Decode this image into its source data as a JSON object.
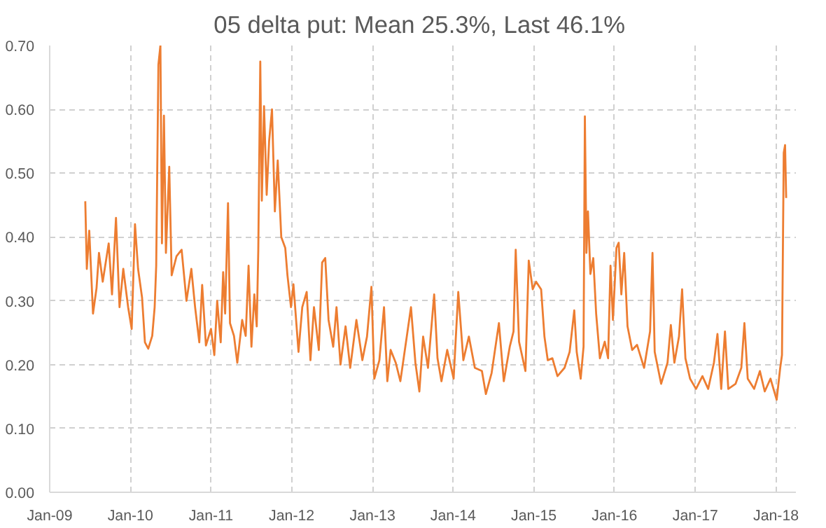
{
  "chart_data": {
    "type": "line",
    "title": "05 delta put:  Mean 25.3%, Last 46.1%",
    "x": [
      "2009-06-11",
      "2009-06-18",
      "2009-06-29",
      "2009-07-16",
      "2009-08-01",
      "2009-08-12",
      "2009-08-29",
      "2009-09-25",
      "2009-10-10",
      "2009-10-28",
      "2009-11-13",
      "2009-11-30",
      "2009-12-22",
      "2010-01-07",
      "2010-01-22",
      "2010-02-05",
      "2010-02-23",
      "2010-03-08",
      "2010-03-23",
      "2010-04-10",
      "2010-04-21",
      "2010-04-28",
      "2010-05-08",
      "2010-05-17",
      "2010-05-24",
      "2010-06-02",
      "2010-06-11",
      "2010-06-26",
      "2010-07-07",
      "2010-07-29",
      "2010-08-21",
      "2010-09-12",
      "2010-10-04",
      "2010-10-21",
      "2010-11-09",
      "2010-11-22",
      "2010-12-09",
      "2011-01-01",
      "2011-01-16",
      "2011-01-29",
      "2011-02-14",
      "2011-02-25",
      "2011-03-06",
      "2011-03-19",
      "2011-03-28",
      "2011-04-15",
      "2011-04-30",
      "2011-05-22",
      "2011-06-07",
      "2011-06-20",
      "2011-07-03",
      "2011-07-16",
      "2011-07-27",
      "2011-08-03",
      "2011-08-12",
      "2011-08-19",
      "2011-08-29",
      "2011-09-10",
      "2011-09-21",
      "2011-10-04",
      "2011-10-17",
      "2011-10-30",
      "2011-11-15",
      "2011-12-03",
      "2011-12-13",
      "2011-12-29",
      "2012-01-09",
      "2012-02-01",
      "2012-02-18",
      "2012-03-09",
      "2012-03-26",
      "2012-04-11",
      "2012-05-03",
      "2012-05-18",
      "2012-06-01",
      "2012-06-16",
      "2012-07-07",
      "2012-07-22",
      "2012-08-09",
      "2012-09-01",
      "2012-09-22",
      "2012-10-20",
      "2012-11-16",
      "2012-12-07",
      "2012-12-27",
      "2013-01-09",
      "2013-02-01",
      "2013-02-22",
      "2013-03-09",
      "2013-03-24",
      "2013-04-16",
      "2013-05-07",
      "2013-06-05",
      "2013-06-24",
      "2013-07-14",
      "2013-08-01",
      "2013-08-18",
      "2013-09-09",
      "2013-10-07",
      "2013-10-22",
      "2013-11-09",
      "2013-12-05",
      "2014-01-03",
      "2014-01-24",
      "2014-02-16",
      "2014-03-13",
      "2014-04-09",
      "2014-05-11",
      "2014-05-29",
      "2014-06-24",
      "2014-07-27",
      "2014-08-18",
      "2014-09-14",
      "2014-10-01",
      "2014-10-11",
      "2014-10-26",
      "2014-11-24",
      "2014-12-09",
      "2014-12-27",
      "2015-01-11",
      "2015-02-03",
      "2015-02-18",
      "2015-03-05",
      "2015-03-26",
      "2015-04-18",
      "2015-05-20",
      "2015-06-12",
      "2015-07-03",
      "2015-07-14",
      "2015-08-01",
      "2015-08-14",
      "2015-08-20",
      "2015-08-27",
      "2015-09-03",
      "2015-09-14",
      "2015-09-27",
      "2015-10-10",
      "2015-10-27",
      "2015-11-18",
      "2015-12-03",
      "2015-12-14",
      "2015-12-25",
      "2016-01-10",
      "2016-01-20",
      "2016-02-01",
      "2016-02-14",
      "2016-02-29",
      "2016-03-21",
      "2016-04-12",
      "2016-05-14",
      "2016-06-10",
      "2016-06-21",
      "2016-07-01",
      "2016-07-30",
      "2016-08-28",
      "2016-09-12",
      "2016-09-28",
      "2016-10-19",
      "2016-11-02",
      "2016-11-17",
      "2016-12-08",
      "2017-01-04",
      "2017-02-02",
      "2017-02-28",
      "2017-03-26",
      "2017-04-11",
      "2017-04-28",
      "2017-05-15",
      "2017-05-30",
      "2017-07-02",
      "2017-07-28",
      "2017-08-11",
      "2017-08-26",
      "2017-09-24",
      "2017-10-20",
      "2017-11-11",
      "2017-12-07",
      "2018-01-04",
      "2018-01-20",
      "2018-01-28",
      "2018-02-05",
      "2018-02-11",
      "2018-02-16"
    ],
    "series": [
      {
        "color": "#ed7d31",
        "values": [
          0.456,
          0.35,
          0.41,
          0.28,
          0.32,
          0.375,
          0.33,
          0.39,
          0.31,
          0.43,
          0.29,
          0.35,
          0.29,
          0.256,
          0.42,
          0.35,
          0.305,
          0.235,
          0.225,
          0.245,
          0.29,
          0.355,
          0.67,
          0.7,
          0.39,
          0.59,
          0.375,
          0.51,
          0.34,
          0.37,
          0.38,
          0.3,
          0.35,
          0.29,
          0.235,
          0.325,
          0.23,
          0.256,
          0.215,
          0.3,
          0.235,
          0.345,
          0.28,
          0.453,
          0.265,
          0.245,
          0.203,
          0.27,
          0.245,
          0.355,
          0.228,
          0.31,
          0.26,
          0.38,
          0.675,
          0.457,
          0.605,
          0.466,
          0.55,
          0.6,
          0.44,
          0.52,
          0.4,
          0.383,
          0.34,
          0.29,
          0.326,
          0.22,
          0.29,
          0.314,
          0.207,
          0.29,
          0.223,
          0.36,
          0.367,
          0.27,
          0.228,
          0.29,
          0.2,
          0.26,
          0.195,
          0.27,
          0.207,
          0.244,
          0.322,
          0.178,
          0.207,
          0.29,
          0.174,
          0.223,
          0.203,
          0.174,
          0.244,
          0.29,
          0.203,
          0.158,
          0.244,
          0.195,
          0.31,
          0.21,
          0.174,
          0.223,
          0.178,
          0.314,
          0.207,
          0.244,
          0.195,
          0.19,
          0.154,
          0.187,
          0.265,
          0.174,
          0.228,
          0.252,
          0.38,
          0.236,
          0.19,
          0.363,
          0.318,
          0.33,
          0.318,
          0.244,
          0.207,
          0.21,
          0.182,
          0.195,
          0.22,
          0.285,
          0.22,
          0.178,
          0.228,
          0.589,
          0.375,
          0.44,
          0.342,
          0.367,
          0.28,
          0.21,
          0.236,
          0.21,
          0.355,
          0.27,
          0.383,
          0.391,
          0.31,
          0.375,
          0.26,
          0.223,
          0.231,
          0.195,
          0.252,
          0.375,
          0.22,
          0.17,
          0.203,
          0.262,
          0.203,
          0.244,
          0.318,
          0.21,
          0.178,
          0.162,
          0.182,
          0.162,
          0.203,
          0.248,
          0.162,
          0.252,
          0.162,
          0.17,
          0.195,
          0.265,
          0.178,
          0.162,
          0.19,
          0.158,
          0.178,
          0.145,
          0.195,
          0.215,
          0.532,
          0.544,
          0.461
        ]
      }
    ],
    "xlim": [
      "2009-01-01",
      "2018-04-01"
    ],
    "xticks": [
      {
        "value": "2009-01-01",
        "label": "Jan-09"
      },
      {
        "value": "2010-01-01",
        "label": "Jan-10"
      },
      {
        "value": "2011-01-01",
        "label": "Jan-11"
      },
      {
        "value": "2012-01-01",
        "label": "Jan-12"
      },
      {
        "value": "2013-01-01",
        "label": "Jan-13"
      },
      {
        "value": "2014-01-01",
        "label": "Jan-14"
      },
      {
        "value": "2015-01-01",
        "label": "Jan-15"
      },
      {
        "value": "2016-01-01",
        "label": "Jan-16"
      },
      {
        "value": "2017-01-01",
        "label": "Jan-17"
      },
      {
        "value": "2018-01-01",
        "label": "Jan-18"
      }
    ],
    "ylim": [
      0,
      0.7
    ],
    "yticks": [
      {
        "value": 0,
        "label": "0.00"
      },
      {
        "value": 0.1,
        "label": "0.10"
      },
      {
        "value": 0.2,
        "label": "0.20"
      },
      {
        "value": 0.3,
        "label": "0.30"
      },
      {
        "value": 0.4,
        "label": "0.40"
      },
      {
        "value": 0.5,
        "label": "0.50"
      },
      {
        "value": 0.6,
        "label": "0.60"
      },
      {
        "value": 0.7,
        "label": "0.70"
      }
    ],
    "grid": true,
    "line_style": "solid"
  }
}
